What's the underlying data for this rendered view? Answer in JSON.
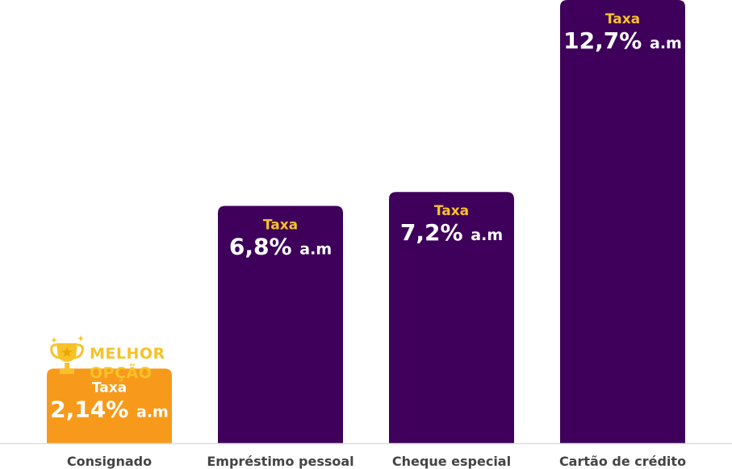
{
  "chart_data": {
    "type": "bar",
    "categories": [
      "Consignado",
      "Empréstimo pessoal",
      "Cheque especial",
      "Cartão de crédito"
    ],
    "values": [
      2.14,
      6.8,
      7.2,
      12.7
    ],
    "value_labels": [
      "2,14%",
      "6,8%",
      "7,2%",
      "12,7%"
    ],
    "bar_title": "Taxa",
    "unit": "a.m",
    "highlight_index": 0,
    "badge_lines": [
      "MELHOR",
      "OPÇÃO"
    ],
    "badge_icon": "trophy-icon",
    "ylim": [
      0,
      12.7
    ],
    "grid": false,
    "legend": "none"
  },
  "colors": {
    "bar": "#3E005A",
    "highlight_bar": "#F79A1B",
    "title_on_bar": "#F7C229",
    "title_on_highlight": "#FFFFFF",
    "value_text": "#FFFFFF",
    "badge": "#F7C229",
    "category_text": "#444444",
    "baseline": "#DDDDDD"
  }
}
